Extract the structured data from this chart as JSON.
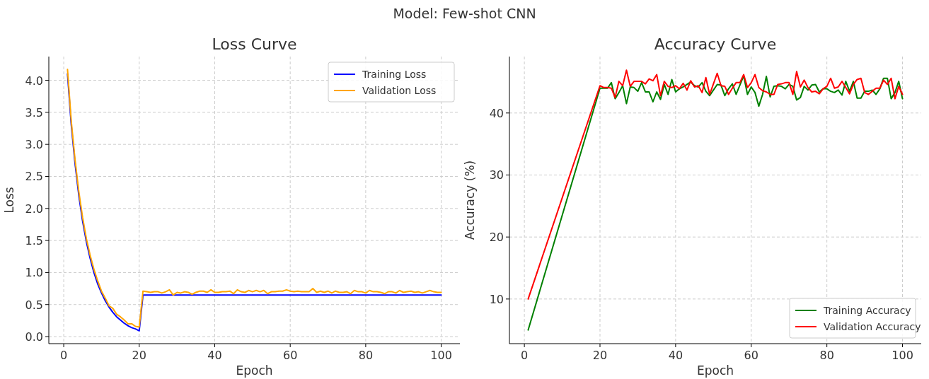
{
  "chart_data": [
    {
      "type": "line",
      "title": "Loss Curve",
      "annotations": [
        "Model: Few-shot CNN"
      ],
      "xlabel": "Epoch",
      "ylabel": "Loss",
      "x": [
        1,
        2,
        3,
        4,
        5,
        6,
        7,
        8,
        9,
        10,
        11,
        12,
        13,
        14,
        15,
        16,
        17,
        18,
        19,
        20,
        21,
        22,
        23,
        24,
        25,
        26,
        27,
        28,
        29,
        30,
        31,
        32,
        33,
        34,
        35,
        36,
        37,
        38,
        39,
        40,
        41,
        42,
        43,
        44,
        45,
        46,
        47,
        48,
        49,
        50,
        51,
        52,
        53,
        54,
        55,
        56,
        57,
        58,
        59,
        60,
        61,
        62,
        63,
        64,
        65,
        66,
        67,
        68,
        69,
        70,
        71,
        72,
        73,
        74,
        75,
        76,
        77,
        78,
        79,
        80,
        81,
        82,
        83,
        84,
        85,
        86,
        87,
        88,
        89,
        90,
        91,
        92,
        93,
        94,
        95,
        96,
        97,
        98,
        99,
        100
      ],
      "series": [
        {
          "name": "Training Loss",
          "color": "#0000ff",
          "values": [
            4.1,
            3.3,
            2.7,
            2.2,
            1.8,
            1.48,
            1.22,
            1.0,
            0.82,
            0.68,
            0.56,
            0.46,
            0.38,
            0.31,
            0.26,
            0.21,
            0.17,
            0.14,
            0.12,
            0.09,
            0.65,
            0.65,
            0.65,
            0.65,
            0.65,
            0.65,
            0.65,
            0.65,
            0.65,
            0.65,
            0.65,
            0.65,
            0.65,
            0.65,
            0.65,
            0.65,
            0.65,
            0.65,
            0.65,
            0.65,
            0.65,
            0.65,
            0.65,
            0.65,
            0.65,
            0.65,
            0.65,
            0.65,
            0.65,
            0.65,
            0.65,
            0.65,
            0.65,
            0.65,
            0.65,
            0.65,
            0.65,
            0.65,
            0.65,
            0.65,
            0.65,
            0.65,
            0.65,
            0.65,
            0.65,
            0.65,
            0.65,
            0.65,
            0.65,
            0.65,
            0.65,
            0.65,
            0.65,
            0.65,
            0.65,
            0.65,
            0.65,
            0.65,
            0.65,
            0.65,
            0.65,
            0.65,
            0.65,
            0.65,
            0.65,
            0.65,
            0.65,
            0.65,
            0.65,
            0.65,
            0.65,
            0.65,
            0.65,
            0.65,
            0.65,
            0.65,
            0.65,
            0.65,
            0.65,
            0.65
          ]
        },
        {
          "name": "Validation Loss",
          "color": "#ffa500",
          "values": [
            4.17,
            3.36,
            2.76,
            2.26,
            1.86,
            1.53,
            1.27,
            1.05,
            0.87,
            0.71,
            0.6,
            0.48,
            0.44,
            0.35,
            0.31,
            0.26,
            0.2,
            0.2,
            0.16,
            0.15,
            0.71,
            0.7,
            0.69,
            0.7,
            0.7,
            0.68,
            0.7,
            0.73,
            0.65,
            0.69,
            0.68,
            0.7,
            0.69,
            0.66,
            0.69,
            0.71,
            0.71,
            0.69,
            0.73,
            0.69,
            0.69,
            0.7,
            0.7,
            0.71,
            0.67,
            0.73,
            0.7,
            0.69,
            0.72,
            0.7,
            0.72,
            0.7,
            0.72,
            0.67,
            0.7,
            0.7,
            0.71,
            0.71,
            0.73,
            0.71,
            0.7,
            0.71,
            0.7,
            0.7,
            0.7,
            0.75,
            0.69,
            0.71,
            0.69,
            0.71,
            0.68,
            0.71,
            0.69,
            0.69,
            0.7,
            0.67,
            0.72,
            0.7,
            0.7,
            0.68,
            0.72,
            0.7,
            0.7,
            0.69,
            0.67,
            0.7,
            0.7,
            0.68,
            0.72,
            0.69,
            0.7,
            0.71,
            0.69,
            0.7,
            0.68,
            0.7,
            0.72,
            0.7,
            0.69,
            0.69
          ]
        }
      ],
      "xlim": [
        -3.95,
        104.95
      ],
      "xticks": [
        0,
        20,
        40,
        60,
        80,
        100
      ],
      "ylim": [
        -0.11,
        4.37
      ],
      "yticks": [
        {
          "value": 0,
          "label": "0.0"
        },
        0.5,
        {
          "value": 1,
          "label": "1.0"
        },
        1.5,
        {
          "value": 2,
          "label": "2.0"
        },
        2.5,
        {
          "value": 3,
          "label": "3.0"
        },
        3.5,
        {
          "value": 4,
          "label": "4.0"
        }
      ],
      "grid": true,
      "legend": "top right",
      "line_style": "solid",
      "marker": "none"
    },
    {
      "type": "line",
      "title": "Accuracy Curve",
      "xlabel": "Epoch",
      "ylabel": "Accuracy (%)",
      "series": [
        {
          "name": "Training Accuracy",
          "color": "#008000",
          "x": [
            1,
            20,
            21,
            22,
            23,
            24,
            25,
            26,
            27,
            28,
            29,
            30,
            31,
            32,
            33,
            34,
            35,
            36,
            37,
            38,
            39,
            40,
            41,
            42,
            43,
            44,
            45,
            46,
            47,
            48,
            49,
            50,
            51,
            52,
            53,
            54,
            55,
            56,
            57,
            58,
            59,
            60,
            61,
            62,
            63,
            64,
            65,
            66,
            67,
            68,
            69,
            70,
            71,
            72,
            73,
            74,
            75,
            76,
            77,
            78,
            79,
            80,
            81,
            82,
            83,
            84,
            85,
            86,
            87,
            88,
            89,
            90,
            91,
            92,
            93,
            94,
            95,
            96,
            97,
            98,
            99,
            100
          ],
          "values": [
            5,
            44.0,
            44.0,
            44.0,
            44.9,
            42.3,
            43.3,
            44.4,
            41.5,
            44.2,
            44.1,
            43.5,
            44.9,
            43.4,
            43.4,
            41.8,
            43.4,
            42.2,
            44.6,
            43.0,
            45.4,
            43.4,
            43.9,
            44.2,
            44.6,
            45.0,
            44.4,
            44.2,
            44.9,
            43.5,
            42.8,
            43.7,
            44.6,
            44.5,
            42.8,
            43.9,
            44.7,
            43.0,
            44.5,
            46.0,
            43.0,
            44.2,
            43.3,
            41.1,
            43.0,
            45.9,
            42.6,
            44.3,
            44.4,
            44.3,
            43.9,
            44.6,
            44.3,
            42.1,
            42.5,
            44.3,
            43.7,
            44.5,
            44.6,
            43.4,
            43.9,
            43.9,
            43.5,
            43.3,
            43.7,
            42.9,
            45.1,
            43.5,
            45.1,
            42.4,
            42.4,
            43.5,
            43.5,
            43.7,
            43.0,
            43.9,
            45.6,
            45.6,
            42.3,
            43.3,
            45.1,
            42.3
          ]
        },
        {
          "name": "Validation Accuracy",
          "color": "#ff0000",
          "x": [
            1,
            20,
            21,
            22,
            23,
            24,
            25,
            26,
            27,
            28,
            29,
            30,
            31,
            32,
            33,
            34,
            35,
            36,
            37,
            38,
            39,
            40,
            41,
            42,
            43,
            44,
            45,
            46,
            47,
            48,
            49,
            50,
            51,
            52,
            53,
            54,
            55,
            56,
            57,
            58,
            59,
            60,
            61,
            62,
            63,
            64,
            65,
            66,
            67,
            68,
            69,
            70,
            71,
            72,
            73,
            74,
            75,
            76,
            77,
            78,
            79,
            80,
            81,
            82,
            83,
            84,
            85,
            86,
            87,
            88,
            89,
            90,
            91,
            92,
            93,
            94,
            95,
            96,
            97,
            98,
            99,
            100
          ],
          "values": [
            10,
            44.4,
            44.1,
            44.1,
            44.0,
            42.5,
            45.1,
            44.4,
            46.9,
            44.3,
            45.1,
            45.1,
            45.1,
            44.7,
            45.5,
            45.2,
            46.2,
            42.8,
            45.1,
            44.3,
            44.1,
            44.4,
            43.9,
            44.8,
            43.7,
            45.2,
            44.2,
            44.4,
            43.3,
            45.7,
            43.0,
            44.7,
            46.4,
            44.4,
            44.3,
            43.0,
            44.0,
            44.9,
            44.9,
            46.2,
            44.1,
            44.9,
            46.2,
            44.1,
            43.6,
            43.4,
            43.0,
            43.0,
            44.6,
            44.7,
            44.9,
            44.9,
            43.0,
            46.7,
            44.2,
            45.3,
            44.1,
            43.4,
            43.5,
            43.1,
            43.9,
            44.3,
            45.6,
            44.0,
            44.2,
            45.1,
            44.1,
            43.1,
            44.6,
            45.4,
            45.6,
            43.3,
            43.0,
            43.5,
            44.0,
            44.0,
            45.3,
            44.6,
            45.6,
            42.3,
            44.3,
            43.0
          ]
        }
      ],
      "xlim": [
        -3.95,
        104.95
      ],
      "xticks": [
        0,
        20,
        40,
        60,
        80,
        100
      ],
      "ylim": [
        2.8,
        49.1
      ],
      "yticks": [
        10,
        20,
        30,
        40
      ],
      "grid": true,
      "legend": "bottom right",
      "line_style": "solid",
      "marker": "none"
    }
  ]
}
